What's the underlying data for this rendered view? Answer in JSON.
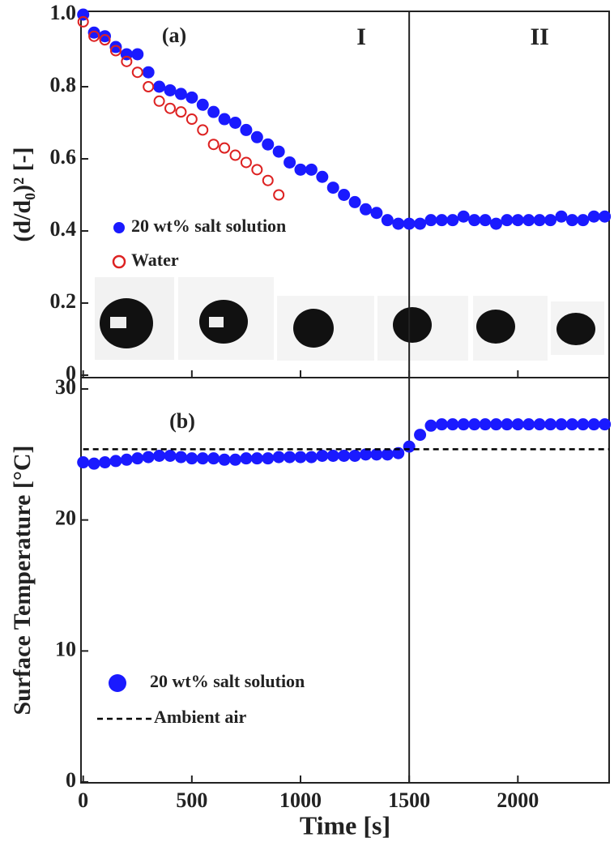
{
  "chart_data": [
    {
      "type": "scatter",
      "panel_label": "(a)",
      "ylabel": "(d/d₀)² [-]",
      "xlim": [
        -10,
        2420
      ],
      "xticks": [
        0,
        500,
        1000,
        1500,
        2000
      ],
      "ylim": [
        0,
        1
      ],
      "yticks": [
        0,
        0.2,
        0.4,
        0.6,
        0.8,
        {
          "value": 1,
          "label": "1.0"
        }
      ],
      "vline": 1500,
      "regions": [
        {
          "label": "I",
          "x": 1280
        },
        {
          "label": "II",
          "x": 2100
        }
      ],
      "series": [
        {
          "name": "20 wt% salt solution",
          "color": "#1a1aff",
          "marker": "filled",
          "x": [
            0,
            50,
            100,
            150,
            200,
            250,
            300,
            350,
            400,
            450,
            500,
            550,
            600,
            650,
            700,
            750,
            800,
            850,
            900,
            950,
            1000,
            1050,
            1100,
            1150,
            1200,
            1250,
            1300,
            1350,
            1400,
            1450,
            1500,
            1550,
            1600,
            1650,
            1700,
            1750,
            1800,
            1850,
            1900,
            1950,
            2000,
            2050,
            2100,
            2150,
            2200,
            2250,
            2300,
            2350,
            2400
          ],
          "values": [
            1.0,
            0.95,
            0.94,
            0.91,
            0.89,
            0.89,
            0.84,
            0.8,
            0.79,
            0.78,
            0.77,
            0.75,
            0.73,
            0.71,
            0.7,
            0.68,
            0.66,
            0.64,
            0.62,
            0.59,
            0.57,
            0.57,
            0.55,
            0.52,
            0.5,
            0.48,
            0.46,
            0.45,
            0.43,
            0.42,
            0.42,
            0.42,
            0.43,
            0.43,
            0.43,
            0.44,
            0.43,
            0.43,
            0.42,
            0.43,
            0.43,
            0.43,
            0.43,
            0.43,
            0.44,
            0.43,
            0.43,
            0.44,
            0.44
          ]
        },
        {
          "name": "Water",
          "color": "#dd2222",
          "marker": "open",
          "x": [
            0,
            50,
            100,
            150,
            200,
            250,
            300,
            350,
            400,
            450,
            500,
            550,
            600,
            650,
            700,
            750,
            800,
            850,
            900
          ],
          "values": [
            0.98,
            0.94,
            0.93,
            0.9,
            0.87,
            0.84,
            0.8,
            0.76,
            0.74,
            0.73,
            0.71,
            0.68,
            0.64,
            0.63,
            0.61,
            0.59,
            0.57,
            0.54,
            0.5
          ]
        }
      ]
    },
    {
      "type": "scatter",
      "panel_label": "(b)",
      "xlabel": "Time [s]",
      "ylabel": "Surface Temperature [°C]",
      "xlim": [
        -10,
        2420
      ],
      "xticks": [
        0,
        500,
        1000,
        1500,
        2000
      ],
      "ylim": [
        0,
        30
      ],
      "yticks": [
        0,
        10,
        20,
        30
      ],
      "vline": 1500,
      "series": [
        {
          "name": "20 wt% salt solution",
          "color": "#1a1aff",
          "marker": "filled",
          "x": [
            0,
            50,
            100,
            150,
            200,
            250,
            300,
            350,
            400,
            450,
            500,
            550,
            600,
            650,
            700,
            750,
            800,
            850,
            900,
            950,
            1000,
            1050,
            1100,
            1150,
            1200,
            1250,
            1300,
            1350,
            1400,
            1450,
            1500,
            1550,
            1600,
            1650,
            1700,
            1750,
            1800,
            1850,
            1900,
            1950,
            2000,
            2050,
            2100,
            2150,
            2200,
            2250,
            2300,
            2350,
            2400
          ],
          "values": [
            24.4,
            24.3,
            24.4,
            24.5,
            24.6,
            24.7,
            24.8,
            24.9,
            24.9,
            24.8,
            24.7,
            24.7,
            24.7,
            24.6,
            24.6,
            24.7,
            24.7,
            24.7,
            24.8,
            24.8,
            24.8,
            24.8,
            24.9,
            24.9,
            24.9,
            24.9,
            25.0,
            25.0,
            25.0,
            25.1,
            25.6,
            26.5,
            27.2,
            27.3,
            27.3,
            27.3,
            27.3,
            27.3,
            27.3,
            27.3,
            27.3,
            27.3,
            27.3,
            27.3,
            27.3,
            27.3,
            27.3,
            27.3,
            27.3
          ]
        },
        {
          "name": "Ambient air",
          "color": "#000000",
          "linestyle": "dashed",
          "x": [
            0,
            2420
          ],
          "values": [
            25.4,
            25.4
          ]
        }
      ]
    }
  ]
}
